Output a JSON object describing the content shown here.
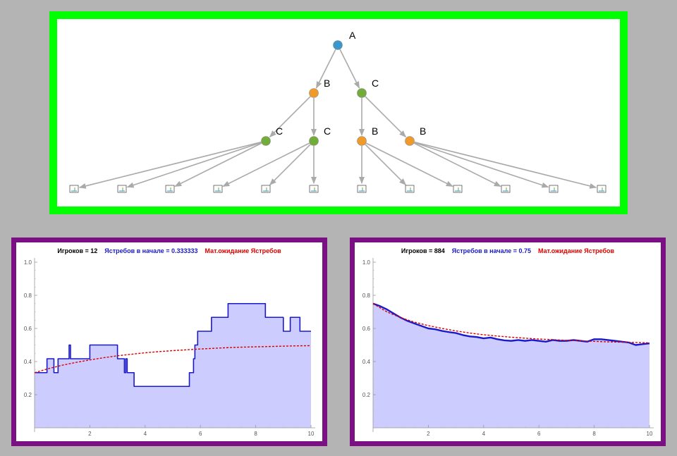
{
  "tree": {
    "nodes": [
      {
        "id": "A",
        "label": "A",
        "color": "#3a97cc",
        "kind": "circle"
      },
      {
        "id": "B1",
        "label": "B",
        "color": "#f09a2a",
        "kind": "circle"
      },
      {
        "id": "C1",
        "label": "C",
        "color": "#72ac3a",
        "kind": "circle"
      },
      {
        "id": "C2",
        "label": "C",
        "color": "#72ac3a",
        "kind": "circle"
      },
      {
        "id": "C3",
        "label": "C",
        "color": "#72ac3a",
        "kind": "circle"
      },
      {
        "id": "B2",
        "label": "B",
        "color": "#f09a2a",
        "kind": "circle"
      },
      {
        "id": "B3",
        "label": "B",
        "color": "#f09a2a",
        "kind": "circle"
      },
      {
        "id": "L1",
        "label": "",
        "kind": "leaf"
      },
      {
        "id": "L2",
        "label": "",
        "kind": "leaf"
      },
      {
        "id": "L3",
        "label": "",
        "kind": "leaf"
      },
      {
        "id": "L4",
        "label": "",
        "kind": "leaf"
      },
      {
        "id": "L5",
        "label": "",
        "kind": "leaf"
      },
      {
        "id": "L6",
        "label": "",
        "kind": "leaf"
      },
      {
        "id": "L7",
        "label": "",
        "kind": "leaf"
      },
      {
        "id": "L8",
        "label": "",
        "kind": "leaf"
      },
      {
        "id": "L9",
        "label": "",
        "kind": "leaf"
      },
      {
        "id": "L10",
        "label": "",
        "kind": "leaf"
      },
      {
        "id": "L11",
        "label": "",
        "kind": "leaf"
      },
      {
        "id": "L12",
        "label": "",
        "kind": "leaf"
      }
    ],
    "edges": [
      [
        "A",
        "B1"
      ],
      [
        "A",
        "C1"
      ],
      [
        "B1",
        "C2"
      ],
      [
        "B1",
        "C3"
      ],
      [
        "C1",
        "B2"
      ],
      [
        "C1",
        "B3"
      ],
      [
        "C2",
        "L1"
      ],
      [
        "C2",
        "L2"
      ],
      [
        "C2",
        "L3"
      ],
      [
        "C3",
        "L4"
      ],
      [
        "C3",
        "L5"
      ],
      [
        "C3",
        "L6"
      ],
      [
        "B2",
        "L7"
      ],
      [
        "B2",
        "L8"
      ],
      [
        "B2",
        "L9"
      ],
      [
        "B3",
        "L10"
      ],
      [
        "B3",
        "L11"
      ],
      [
        "B3",
        "L12"
      ]
    ],
    "edge_color": "#aaaaaa"
  },
  "chart_data": [
    {
      "type": "area",
      "title_parts": [
        {
          "text": "Игроков = 12",
          "color": "#000000"
        },
        {
          "text": "Ястребов в начале = 0.333333",
          "color": "#1a1acc"
        },
        {
          "text": "Мат.ожидание Ястребов",
          "color": "#dd0000"
        }
      ],
      "xlim": [
        0,
        10
      ],
      "ylim": [
        0,
        1.0
      ],
      "xticks": [
        2,
        4,
        6,
        8,
        10
      ],
      "yticks": [
        0.2,
        0.4,
        0.6,
        0.8,
        1.0
      ],
      "xtick_labels": [
        "2",
        "4",
        "6",
        "8",
        "10"
      ],
      "ytick_labels": [
        "0.2",
        "0.4",
        "0.6",
        "0.8",
        "1.0"
      ],
      "fill_color": "#ccccff",
      "line_color": "#1a1acc",
      "expected_color": "#dd0000",
      "step": true,
      "series": {
        "x": [
          0,
          0.45,
          0.7,
          0.85,
          1.25,
          1.3,
          1.4,
          2.0,
          3.0,
          3.25,
          3.3,
          3.35,
          3.45,
          3.6,
          5.6,
          5.75,
          5.8,
          5.9,
          6.1,
          6.4,
          7.0,
          8.35,
          9.0,
          9.25,
          9.6,
          10
        ],
        "y": [
          0.333,
          0.417,
          0.333,
          0.417,
          0.5,
          0.417,
          0.417,
          0.5,
          0.417,
          0.333,
          0.417,
          0.333,
          0.333,
          0.25,
          0.333,
          0.417,
          0.5,
          0.583,
          0.583,
          0.667,
          0.75,
          0.667,
          0.583,
          0.667,
          0.583,
          0.583
        ]
      },
      "expected": {
        "x": [
          0,
          0.5,
          1,
          1.5,
          2,
          2.5,
          3,
          3.5,
          4,
          4.5,
          5,
          5.5,
          6,
          6.5,
          7,
          7.5,
          8,
          8.5,
          9,
          9.5,
          10
        ],
        "y": [
          0.333,
          0.357,
          0.378,
          0.395,
          0.41,
          0.423,
          0.435,
          0.444,
          0.453,
          0.46,
          0.466,
          0.471,
          0.476,
          0.48,
          0.484,
          0.487,
          0.489,
          0.491,
          0.493,
          0.495,
          0.496
        ]
      }
    },
    {
      "type": "area",
      "title_parts": [
        {
          "text": "Игроков = 884",
          "color": "#000000"
        },
        {
          "text": "Ястребов в начале = 0.75",
          "color": "#1a1acc"
        },
        {
          "text": "Мат.ожидание Ястребов",
          "color": "#dd0000"
        }
      ],
      "xlim": [
        0,
        10
      ],
      "ylim": [
        0,
        1.0
      ],
      "xticks": [
        2,
        4,
        6,
        8,
        10
      ],
      "yticks": [
        0.2,
        0.4,
        0.6,
        0.8,
        1.0
      ],
      "xtick_labels": [
        "2",
        "4",
        "6",
        "8",
        "10"
      ],
      "ytick_labels": [
        "0.2",
        "0.4",
        "0.6",
        "0.8",
        "1.0"
      ],
      "fill_color": "#ccccff",
      "line_color": "#1a1acc",
      "expected_color": "#dd0000",
      "step": false,
      "series": {
        "x": [
          0,
          0.25,
          0.5,
          0.75,
          1.0,
          1.25,
          1.5,
          1.75,
          2.0,
          2.25,
          2.5,
          2.75,
          3.0,
          3.25,
          3.5,
          3.75,
          4.0,
          4.25,
          4.5,
          4.75,
          5.0,
          5.25,
          5.5,
          5.75,
          6.0,
          6.25,
          6.5,
          6.75,
          7.0,
          7.25,
          7.5,
          7.75,
          8.0,
          8.25,
          8.5,
          8.75,
          9.0,
          9.25,
          9.5,
          9.75,
          10.0
        ],
        "y": [
          0.75,
          0.735,
          0.715,
          0.69,
          0.665,
          0.645,
          0.63,
          0.615,
          0.6,
          0.595,
          0.585,
          0.578,
          0.572,
          0.56,
          0.552,
          0.548,
          0.54,
          0.545,
          0.535,
          0.528,
          0.525,
          0.53,
          0.525,
          0.53,
          0.525,
          0.52,
          0.53,
          0.525,
          0.525,
          0.53,
          0.525,
          0.52,
          0.535,
          0.535,
          0.53,
          0.525,
          0.52,
          0.515,
          0.5,
          0.505,
          0.51
        ]
      },
      "expected": {
        "x": [
          0,
          0.5,
          1,
          1.5,
          2,
          2.5,
          3,
          3.5,
          4,
          4.5,
          5,
          5.5,
          6,
          6.5,
          7,
          7.5,
          8,
          8.5,
          9,
          9.5,
          10
        ],
        "y": [
          0.75,
          0.7,
          0.665,
          0.638,
          0.617,
          0.6,
          0.585,
          0.572,
          0.562,
          0.554,
          0.547,
          0.541,
          0.536,
          0.532,
          0.528,
          0.525,
          0.522,
          0.519,
          0.517,
          0.515,
          0.513
        ]
      }
    }
  ]
}
